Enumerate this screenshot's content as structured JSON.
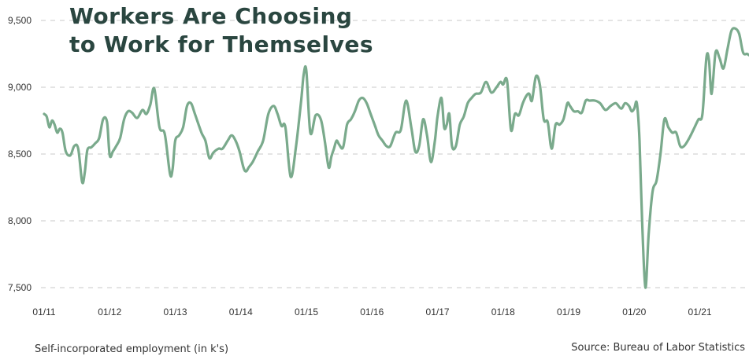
{
  "chart_data": {
    "type": "line",
    "title": "Workers Are Choosing to Work for Themselves",
    "title_lines": [
      "Workers Are Choosing",
      "to Work for Themselves"
    ],
    "ylabel": "Self-incorporated employment (in k's)",
    "source": "Source: Bureau of Labor Statistics",
    "ylim": [
      7500,
      9500
    ],
    "yticks": [
      7500,
      8000,
      8500,
      9000,
      9500
    ],
    "ytick_labels": [
      "7,500",
      "8,000",
      "8,500",
      "9,000",
      "9,500"
    ],
    "xlim": [
      2011.0,
      2021.75
    ],
    "xticks": [
      2011,
      2012,
      2013,
      2014,
      2015,
      2016,
      2017,
      2018,
      2019,
      2020,
      2021
    ],
    "xtick_labels": [
      "01/11",
      "01/12",
      "01/13",
      "01/14",
      "01/15",
      "01/16",
      "01/17",
      "01/18",
      "01/19",
      "01/20",
      "01/21"
    ],
    "grid": "horizontal dashed",
    "line_color": "#7aaa8c",
    "x": [
      2011.0,
      2011.04,
      2011.08,
      2011.12,
      2011.16,
      2011.2,
      2011.24,
      2011.28,
      2011.33,
      2011.4,
      2011.46,
      2011.52,
      2011.58,
      2011.62,
      2011.66,
      2011.72,
      2011.78,
      2011.84,
      2011.9,
      2011.96,
      2012.0,
      2012.05,
      2012.1,
      2012.16,
      2012.22,
      2012.28,
      2012.34,
      2012.42,
      2012.5,
      2012.56,
      2012.62,
      2012.68,
      2012.76,
      2012.84,
      2012.92,
      2012.96,
      2013.0,
      2013.06,
      2013.12,
      2013.18,
      2013.24,
      2013.3,
      2013.4,
      2013.46,
      2013.52,
      2013.58,
      2013.66,
      2013.72,
      2013.8,
      2013.86,
      2013.92,
      2013.98,
      2014.04,
      2014.08,
      2014.12,
      2014.18,
      2014.26,
      2014.34,
      2014.42,
      2014.5,
      2014.56,
      2014.62,
      2014.68,
      2014.76,
      2014.84,
      2014.92,
      2014.96,
      2015.0,
      2015.06,
      2015.14,
      2015.22,
      2015.28,
      2015.34,
      2015.38,
      2015.42,
      2015.46,
      2015.5,
      2015.56,
      2015.62,
      2015.68,
      2015.74,
      2015.8,
      2015.86,
      2015.92,
      2015.98,
      2016.04,
      2016.1,
      2016.16,
      2016.22,
      2016.28,
      2016.36,
      2016.44,
      2016.52,
      2016.6,
      2016.66,
      2016.72,
      2016.78,
      2016.84,
      2016.9,
      2016.96,
      2017.0,
      2017.06,
      2017.1,
      2017.14,
      2017.18,
      2017.22,
      2017.28,
      2017.34,
      2017.4,
      2017.46,
      2017.52,
      2017.58,
      2017.66,
      2017.74,
      2017.82,
      2017.9,
      2017.96,
      2018.0,
      2018.06,
      2018.12,
      2018.18,
      2018.24,
      2018.3,
      2018.36,
      2018.4,
      2018.44,
      2018.5,
      2018.56,
      2018.62,
      2018.68,
      2018.74,
      2018.8,
      2018.86,
      2018.92,
      2018.98,
      2019.02,
      2019.08,
      2019.14,
      2019.2,
      2019.26,
      2019.32,
      2019.4,
      2019.48,
      2019.56,
      2019.64,
      2019.72,
      2019.8,
      2019.86,
      2019.92,
      2019.96,
      2020.0,
      2020.04,
      2020.08,
      2020.12,
      2020.17,
      2020.22,
      2020.28,
      2020.34,
      2020.4,
      2020.46,
      2020.52,
      2020.58,
      2020.64,
      2020.7,
      2020.76,
      2020.84,
      2020.92,
      2020.98,
      2021.04,
      2021.1,
      2021.14,
      2021.18,
      2021.24,
      2021.3,
      2021.36,
      2021.42,
      2021.48,
      2021.54,
      2021.6,
      2021.66,
      2021.72,
      2021.75
    ],
    "y": [
      8800,
      8780,
      8700,
      8750,
      8720,
      8660,
      8690,
      8660,
      8520,
      8490,
      8560,
      8540,
      8290,
      8360,
      8530,
      8550,
      8580,
      8620,
      8760,
      8740,
      8490,
      8520,
      8560,
      8620,
      8760,
      8820,
      8810,
      8770,
      8830,
      8800,
      8870,
      8990,
      8700,
      8650,
      8350,
      8390,
      8600,
      8640,
      8700,
      8860,
      8880,
      8800,
      8660,
      8600,
      8470,
      8510,
      8540,
      8540,
      8600,
      8640,
      8600,
      8520,
      8400,
      8370,
      8400,
      8440,
      8520,
      8600,
      8800,
      8860,
      8800,
      8710,
      8700,
      8330,
      8550,
      8900,
      9100,
      9120,
      8660,
      8790,
      8760,
      8600,
      8400,
      8480,
      8540,
      8600,
      8570,
      8550,
      8720,
      8760,
      8820,
      8900,
      8920,
      8880,
      8800,
      8720,
      8640,
      8600,
      8560,
      8560,
      8660,
      8680,
      8900,
      8700,
      8520,
      8560,
      8760,
      8640,
      8440,
      8600,
      8780,
      8920,
      8700,
      8720,
      8800,
      8560,
      8560,
      8720,
      8780,
      8880,
      8920,
      8950,
      8960,
      9040,
      8960,
      9000,
      9040,
      9020,
      9050,
      8680,
      8800,
      8790,
      8880,
      8940,
      8950,
      8900,
      9080,
      9020,
      8760,
      8740,
      8540,
      8720,
      8720,
      8760,
      8880,
      8860,
      8820,
      8820,
      8810,
      8900,
      8900,
      8900,
      8880,
      8830,
      8860,
      8880,
      8840,
      8880,
      8860,
      8820,
      8840,
      8880,
      8600,
      8000,
      7500,
      7900,
      8220,
      8300,
      8500,
      8760,
      8700,
      8660,
      8660,
      8560,
      8560,
      8620,
      8700,
      8760,
      8800,
      9220,
      9200,
      8950,
      9260,
      9220,
      9140,
      9280,
      9420,
      9440,
      9400,
      9260,
      9250,
      9240
    ]
  }
}
